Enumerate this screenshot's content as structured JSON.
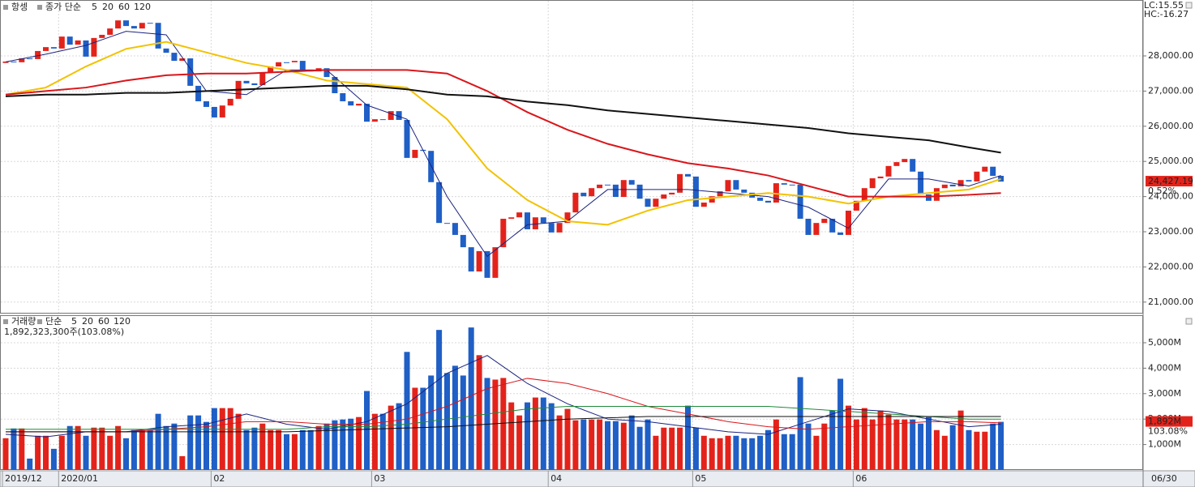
{
  "chart_data": [
    {
      "type": "candlestick",
      "title": "항셍",
      "subtitle": "종가 단순",
      "up_color": "#e3231b",
      "down_color": "#1f5fc6",
      "open": [
        27800,
        27840,
        27820,
        27930,
        27910,
        28140,
        28250,
        28210,
        28550,
        28320,
        28440,
        27980,
        28510,
        28600,
        28780,
        29010,
        28850,
        28780,
        28940,
        28940,
        28210,
        28090,
        27860,
        27930,
        27150,
        26710,
        26550,
        26250,
        26590,
        26780,
        27290,
        27220,
        27170,
        27520,
        27700,
        27820,
        27820,
        27860,
        27610,
        27560,
        27650,
        27400,
        26940,
        26710,
        26590,
        26640,
        26130,
        26200,
        26180,
        26430,
        26180,
        25100,
        25330,
        25300,
        24410,
        23250,
        23250,
        22910,
        22560,
        21870,
        22450,
        21690,
        22560,
        23370,
        23410,
        23550,
        23070,
        23410,
        23250,
        22980,
        23250,
        23550,
        24110,
        24010,
        24240,
        24340,
        24340,
        23990,
        24470,
        24340,
        23940,
        23710,
        23940,
        24060,
        24110,
        24640,
        24570,
        23710,
        23830,
        24010,
        24150,
        24470,
        24200,
        24110,
        23970,
        23880,
        23830,
        24380,
        24340,
        24340,
        23370,
        22910,
        23250,
        23370,
        22980,
        22910,
        23600,
        23880,
        24240,
        24520,
        24570,
        24870,
        24980,
        25070,
        24710,
        24060,
        23880,
        24240,
        24340,
        24290,
        24470,
        24430,
        24710,
        24850,
        24590
      ],
      "close": [
        27840,
        27820,
        27930,
        27910,
        28140,
        28250,
        28210,
        28550,
        28320,
        28440,
        27980,
        28510,
        28600,
        28780,
        29010,
        28850,
        28780,
        28940,
        28940,
        28210,
        28090,
        27860,
        27930,
        27150,
        26710,
        26550,
        26250,
        26590,
        26780,
        27290,
        27220,
        27170,
        27520,
        27700,
        27820,
        27820,
        27860,
        27610,
        27560,
        27650,
        27400,
        26940,
        26710,
        26590,
        26640,
        26130,
        26200,
        26180,
        26430,
        26180,
        25100,
        25330,
        25300,
        24410,
        23250,
        23250,
        22910,
        22560,
        21870,
        22450,
        21690,
        22560,
        23370,
        23410,
        23550,
        23070,
        23410,
        23250,
        22980,
        23250,
        23550,
        24110,
        24010,
        24240,
        24340,
        24340,
        23990,
        24470,
        24340,
        23940,
        23710,
        23940,
        24060,
        24110,
        24640,
        24570,
        23710,
        23830,
        24010,
        24150,
        24470,
        24200,
        24110,
        23970,
        23880,
        23830,
        24380,
        24340,
        24340,
        23370,
        22910,
        23250,
        23370,
        22980,
        22910,
        23600,
        23880,
        24240,
        24520,
        24570,
        24870,
        24980,
        25070,
        24710,
        24060,
        23880,
        24240,
        24340,
        24290,
        24470,
        24430,
        24710,
        24850,
        24590,
        24427.19
      ],
      "last_label": "24,427.19",
      "change_label": "0.52%",
      "corner_labels": [
        {
          "text": "LC:15.55",
          "color": "#e3231b"
        },
        {
          "text": "HC:-16.27",
          "color": "#1f5fc6"
        }
      ],
      "ma_x": [
        0,
        5,
        10,
        15,
        20,
        25,
        30,
        35,
        40,
        45,
        50,
        55,
        60,
        65,
        70,
        75,
        80,
        85,
        90,
        95,
        100,
        105,
        110,
        115,
        120,
        124
      ],
      "series": [
        {
          "name": "5",
          "color": "#1a237e",
          "width": 1,
          "values": [
            27830,
            28050,
            28300,
            28700,
            28600,
            27000,
            26900,
            27600,
            27600,
            26600,
            26200,
            24000,
            22300,
            23200,
            23300,
            24200,
            24200,
            24200,
            24100,
            24000,
            23700,
            23100,
            24500,
            24500,
            24300,
            24600
          ]
        },
        {
          "name": "20",
          "color": "#f2c200",
          "width": 2,
          "values": [
            26900,
            27100,
            27700,
            28200,
            28400,
            28100,
            27800,
            27600,
            27300,
            27200,
            27100,
            26200,
            24800,
            23900,
            23300,
            23200,
            23600,
            23900,
            24000,
            24100,
            24000,
            23800,
            24000,
            24100,
            24200,
            24500
          ]
        },
        {
          "name": "60",
          "color": "#d9161b",
          "width": 2,
          "values": [
            26900,
            27000,
            27100,
            27300,
            27450,
            27500,
            27500,
            27550,
            27600,
            27600,
            27600,
            27500,
            27000,
            26400,
            25900,
            25500,
            25200,
            24950,
            24800,
            24600,
            24300,
            24000,
            24000,
            24000,
            24050,
            24100
          ]
        },
        {
          "name": "120",
          "color": "#111111",
          "width": 2,
          "values": [
            26850,
            26900,
            26900,
            26950,
            26950,
            27000,
            27050,
            27100,
            27150,
            27150,
            27050,
            26900,
            26850,
            26700,
            26600,
            26450,
            26350,
            26250,
            26150,
            26050,
            25950,
            25800,
            25700,
            25600,
            25400,
            25250
          ]
        }
      ],
      "ylim": [
        20673,
        29590
      ],
      "yticks": [
        {
          "value": 21000,
          "label": "21,000.00"
        },
        {
          "value": 22000,
          "label": "22,000.00"
        },
        {
          "value": 23000,
          "label": "23,000.00"
        },
        {
          "value": 24000,
          "label": "24,000.00"
        },
        {
          "value": 25000,
          "label": "25,000.00"
        },
        {
          "value": 26000,
          "label": "26,000.00"
        },
        {
          "value": 27000,
          "label": "27,000.00"
        },
        {
          "value": 28000,
          "label": "28,000.00"
        }
      ],
      "grid": true,
      "date_labels": [
        {
          "index": 0,
          "label": "2019/12"
        },
        {
          "index": 7,
          "label": "2020/01"
        },
        {
          "index": 26,
          "label": "02"
        },
        {
          "index": 46,
          "label": "03"
        },
        {
          "index": 68,
          "label": "04"
        },
        {
          "index": 86,
          "label": "05"
        },
        {
          "index": 106,
          "label": "06"
        }
      ],
      "end_date": "06/30"
    },
    {
      "type": "bar",
      "title": "거래량",
      "subtitle": "단순",
      "info": "1,892,323,300주(103.08%)",
      "values": [
        1248,
        1632,
        1632,
        448,
        1344,
        1344,
        832,
        1344,
        1728,
        1728,
        1344,
        1664,
        1664,
        1344,
        1728,
        1248,
        1568,
        1568,
        1568,
        2208,
        1728,
        1824,
        544,
        2144,
        2144,
        1888,
        2432,
        2432,
        2432,
        2208,
        1568,
        1664,
        1824,
        1568,
        1568,
        1408,
        1408,
        1568,
        1568,
        1728,
        1824,
        1952,
        1984,
        2016,
        2080,
        3104,
        2208,
        2208,
        2528,
        2624,
        4640,
        3232,
        3232,
        3712,
        5504,
        3808,
        4096,
        3712,
        5600,
        4512,
        3616,
        3552,
        3616,
        2656,
        2144,
        2656,
        2848,
        2848,
        2624,
        2144,
        2400,
        1952,
        1984,
        1984,
        1984,
        1920,
        1920,
        1856,
        2144,
        1696,
        1984,
        1344,
        1664,
        1664,
        1664,
        2528,
        1664,
        1344,
        1248,
        1248,
        1344,
        1344,
        1248,
        1248,
        1344,
        1568,
        1984,
        1408,
        1408,
        3648,
        1824,
        1344,
        1824,
        2336,
        3584,
        2528,
        1984,
        2432,
        1984,
        2336,
        2176,
        1984,
        1984,
        1984,
        1824,
        2080,
        1568,
        1344,
        1760,
        2336,
        1568,
        1504,
        1504,
        1824,
        1892
      ],
      "last_label": "1,892M",
      "change_label": "103.08%",
      "ma_x": [
        0,
        5,
        10,
        15,
        20,
        25,
        30,
        35,
        40,
        45,
        50,
        55,
        60,
        65,
        70,
        75,
        80,
        85,
        90,
        95,
        100,
        105,
        110,
        115,
        120,
        124
      ],
      "series": [
        {
          "name": "5",
          "color": "#1a237e",
          "width": 1,
          "values": [
            1400,
            1300,
            1500,
            1500,
            1700,
            1800,
            2200,
            1800,
            1600,
            1900,
            2600,
            3800,
            4500,
            3400,
            2600,
            2000,
            1900,
            1700,
            1500,
            1400,
            1900,
            2400,
            2300,
            2000,
            1700,
            1800
          ]
        },
        {
          "name": "20",
          "color": "#d9161b",
          "width": 1,
          "values": [
            1500,
            1500,
            1500,
            1500,
            1600,
            1700,
            1900,
            1900,
            1800,
            1800,
            2000,
            2500,
            3200,
            3600,
            3400,
            3000,
            2500,
            2200,
            1900,
            1700,
            1600,
            1700,
            1800,
            1900,
            1900,
            1850
          ]
        },
        {
          "name": "60",
          "color": "#1e8a3a",
          "width": 1,
          "values": [
            1600,
            1600,
            1600,
            1600,
            1600,
            1600,
            1600,
            1600,
            1700,
            1700,
            1800,
            2000,
            2200,
            2400,
            2500,
            2500,
            2500,
            2500,
            2500,
            2500,
            2400,
            2300,
            2200,
            2100,
            2000,
            2000
          ]
        },
        {
          "name": "120",
          "color": "#111111",
          "width": 1,
          "values": [
            1500,
            1500,
            1500,
            1500,
            1500,
            1500,
            1500,
            1500,
            1550,
            1600,
            1650,
            1700,
            1800,
            1900,
            2000,
            2050,
            2100,
            2100,
            2100,
            2100,
            2100,
            2100,
            2100,
            2100,
            2100,
            2100
          ]
        }
      ],
      "ylim": [
        0,
        6050
      ],
      "yticks": [
        {
          "value": 1000,
          "label": "1,000M"
        },
        {
          "value": 2000,
          "label": "2,000M"
        },
        {
          "value": 3000,
          "label": "3,000M"
        },
        {
          "value": 4000,
          "label": "4,000M"
        },
        {
          "value": 5000,
          "label": "5,000M"
        }
      ],
      "grid": true
    }
  ]
}
